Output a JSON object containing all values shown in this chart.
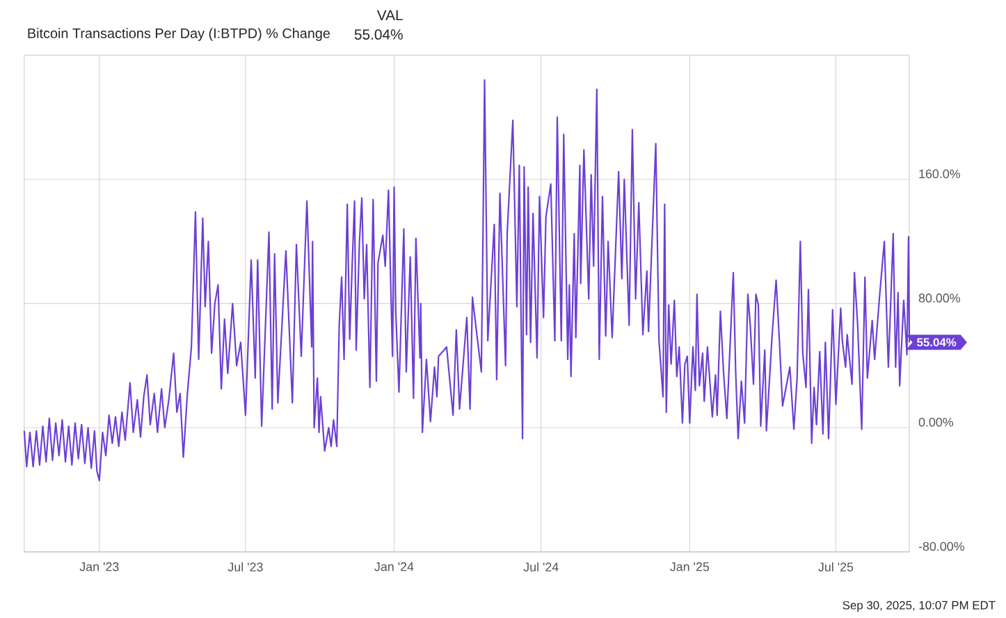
{
  "chart_data": {
    "type": "line",
    "title": "Bitcoin Transactions Per Day (I:BTPD) % Change",
    "annotations": [
      "VAL",
      "55.04%",
      {
        "text": "55.04%",
        "x": "2025-09-30",
        "y": 55.04
      },
      "Sep 30, 2025, 10:07 PM EDT"
    ],
    "xlim": [
      "2022-09-30",
      "2025-09-30"
    ],
    "xticks": [
      {
        "value": "2023-01-01",
        "label": "Jan '23"
      },
      {
        "value": "2023-07-01",
        "label": "Jul '23"
      },
      {
        "value": "2024-01-01",
        "label": "Jan '24"
      },
      {
        "value": "2024-07-01",
        "label": "Jul '24"
      },
      {
        "value": "2025-01-01",
        "label": "Jan '25"
      },
      {
        "value": "2025-07-01",
        "label": "Jul '25"
      }
    ],
    "ylim": [
      -80,
      240
    ],
    "yticks": [
      {
        "value": -80,
        "label": "-80.00%"
      },
      {
        "value": 0,
        "label": "0.00%"
      },
      {
        "value": 80,
        "label": "80.00%"
      },
      {
        "value": 160,
        "label": "160.0%"
      }
    ],
    "grid": true,
    "series": [
      {
        "color": "#6c3fd4",
        "x": [
          "2022-09-30",
          "2022-10-03",
          "2022-10-07",
          "2022-10-11",
          "2022-10-15",
          "2022-10-19",
          "2022-10-23",
          "2022-10-27",
          "2022-10-31",
          "2022-11-04",
          "2022-11-08",
          "2022-11-12",
          "2022-11-16",
          "2022-11-20",
          "2022-11-24",
          "2022-11-28",
          "2022-12-02",
          "2022-12-06",
          "2022-12-10",
          "2022-12-14",
          "2022-12-18",
          "2022-12-22",
          "2022-12-26",
          "2022-12-29",
          "2023-01-01",
          "2023-01-05",
          "2023-01-09",
          "2023-01-13",
          "2023-01-17",
          "2023-01-21",
          "2023-01-25",
          "2023-01-29",
          "2023-02-02",
          "2023-02-08",
          "2023-02-12",
          "2023-02-17",
          "2023-02-21",
          "2023-02-25",
          "2023-03-01",
          "2023-03-05",
          "2023-03-10",
          "2023-03-14",
          "2023-03-19",
          "2023-03-23",
          "2023-03-28",
          "2023-04-03",
          "2023-04-07",
          "2023-04-11",
          "2023-04-15",
          "2023-04-20",
          "2023-04-25",
          "2023-04-30",
          "2023-05-04",
          "2023-05-09",
          "2023-05-12",
          "2023-05-16",
          "2023-05-20",
          "2023-05-24",
          "2023-05-28",
          "2023-06-01",
          "2023-06-05",
          "2023-06-09",
          "2023-06-15",
          "2023-06-20",
          "2023-06-25",
          "2023-07-01",
          "2023-07-08",
          "2023-07-13",
          "2023-07-16",
          "2023-07-21",
          "2023-07-30",
          "2023-08-03",
          "2023-08-06",
          "2023-08-10",
          "2023-08-20",
          "2023-08-28",
          "2023-09-02",
          "2023-09-08",
          "2023-09-15",
          "2023-09-21",
          "2023-09-22",
          "2023-09-24",
          "2023-09-28",
          "2023-09-30",
          "2023-10-02",
          "2023-10-07",
          "2023-10-12",
          "2023-10-15",
          "2023-10-18",
          "2023-10-22",
          "2023-10-25",
          "2023-10-28",
          "2023-10-31",
          "2023-11-04",
          "2023-11-07",
          "2023-11-10",
          "2023-11-13",
          "2023-11-15",
          "2023-11-19",
          "2023-11-22",
          "2023-11-25",
          "2023-11-28",
          "2023-12-02",
          "2023-12-06",
          "2023-12-10",
          "2023-12-12",
          "2023-12-18",
          "2023-12-21",
          "2023-12-25",
          "2023-12-28",
          "2023-12-30",
          "2024-01-01",
          "2024-01-03",
          "2024-01-07",
          "2024-01-13",
          "2024-01-16",
          "2024-01-21",
          "2024-01-25",
          "2024-01-28",
          "2024-02-02",
          "2024-02-03",
          "2024-02-05",
          "2024-02-10",
          "2024-02-15",
          "2024-02-20",
          "2024-02-23",
          "2024-02-25",
          "2024-03-06",
          "2024-03-14",
          "2024-03-18",
          "2024-03-22",
          "2024-03-31",
          "2024-04-04",
          "2024-04-07",
          "2024-04-18",
          "2024-04-20",
          "2024-04-22",
          "2024-04-26",
          "2024-05-04",
          "2024-05-07",
          "2024-05-11",
          "2024-05-18",
          "2024-05-20",
          "2024-05-27",
          "2024-06-01",
          "2024-06-04",
          "2024-06-08",
          "2024-06-10",
          "2024-06-13",
          "2024-06-15",
          "2024-06-18",
          "2024-06-21",
          "2024-06-26",
          "2024-06-29",
          "2024-07-04",
          "2024-07-07",
          "2024-07-13",
          "2024-07-18",
          "2024-07-21",
          "2024-07-26",
          "2024-07-29",
          "2024-08-03",
          "2024-08-05",
          "2024-08-07",
          "2024-08-11",
          "2024-08-13",
          "2024-08-18",
          "2024-08-19",
          "2024-08-23",
          "2024-08-29",
          "2024-09-01",
          "2024-09-04",
          "2024-09-08",
          "2024-09-11",
          "2024-09-15",
          "2024-09-19",
          "2024-09-22",
          "2024-09-27",
          "2024-10-05",
          "2024-10-09",
          "2024-10-12",
          "2024-10-18",
          "2024-10-22",
          "2024-10-26",
          "2024-10-30",
          "2024-11-04",
          "2024-11-09",
          "2024-11-11",
          "2024-11-20",
          "2024-11-24",
          "2024-11-29",
          "2024-12-01",
          "2024-12-03",
          "2024-12-06",
          "2024-12-09",
          "2024-12-13",
          "2024-12-16",
          "2024-12-19",
          "2024-12-23",
          "2024-12-26",
          "2024-12-29",
          "2025-01-01",
          "2025-01-05",
          "2025-01-08",
          "2025-01-10",
          "2025-01-13",
          "2025-01-17",
          "2025-01-19",
          "2025-01-23",
          "2025-01-29",
          "2025-02-02",
          "2025-02-04",
          "2025-02-08",
          "2025-02-12",
          "2025-02-16",
          "2025-02-24",
          "2025-02-27",
          "2025-03-02",
          "2025-03-06",
          "2025-03-10",
          "2025-03-14",
          "2025-03-17",
          "2025-03-21",
          "2025-03-24",
          "2025-03-27",
          "2025-03-30",
          "2025-04-04",
          "2025-04-06",
          "2025-04-13",
          "2025-04-18",
          "2025-04-22",
          "2025-04-26",
          "2025-05-05",
          "2025-05-10",
          "2025-05-14",
          "2025-05-18",
          "2025-05-21",
          "2025-05-25",
          "2025-05-28",
          "2025-06-01",
          "2025-06-04",
          "2025-06-07",
          "2025-06-11",
          "2025-06-15",
          "2025-06-18",
          "2025-06-22",
          "2025-06-27",
          "2025-07-01",
          "2025-07-07",
          "2025-07-09",
          "2025-07-13",
          "2025-07-15",
          "2025-07-21",
          "2025-07-24",
          "2025-07-28",
          "2025-08-02",
          "2025-08-06",
          "2025-08-09",
          "2025-08-15",
          "2025-08-18",
          "2025-08-24",
          "2025-08-30",
          "2025-09-04",
          "2025-09-10",
          "2025-09-13",
          "2025-09-16",
          "2025-09-18",
          "2025-09-23",
          "2025-09-27",
          "2025-09-29",
          "2025-09-30"
        ],
        "values": [
          -2,
          -25,
          -3,
          -25,
          -2,
          -24,
          1,
          -22,
          6,
          -21,
          3,
          -18,
          5,
          -22,
          1,
          -24,
          3,
          -20,
          2,
          -23,
          0,
          -26,
          -2,
          -28,
          -34,
          -3,
          -18,
          8,
          -10,
          7,
          -12,
          10,
          -8,
          29,
          -3,
          18,
          -6,
          20,
          34,
          2,
          22,
          -3,
          25,
          0,
          18,
          48,
          10,
          22,
          -19,
          22,
          52,
          139,
          44,
          135,
          78,
          120,
          48,
          80,
          92,
          25,
          70,
          35,
          80,
          40,
          55,
          8,
          108,
          32,
          108,
          1,
          126,
          12,
          112,
          16,
          114,
          16,
          118,
          46,
          146,
          52,
          120,
          0,
          32,
          -3,
          20,
          -15,
          0,
          -12,
          5,
          -12,
          66,
          97,
          44,
          144,
          57,
          104,
          146,
          50,
          119,
          148,
          83,
          118,
          26,
          147,
          30,
          106,
          124,
          104,
          153,
          88,
          46,
          155,
          75,
          23,
          128,
          36,
          110,
          19,
          122,
          45,
          80,
          -3,
          44,
          4,
          39,
          20,
          46,
          52,
          8,
          63,
          12,
          71,
          12,
          84,
          36,
          122,
          224,
          56,
          131,
          31,
          151,
          40,
          125,
          198,
          78,
          169,
          -7,
          168,
          60,
          155,
          55,
          138,
          45,
          149,
          71,
          136,
          157,
          56,
          200,
          56,
          189,
          44,
          92,
          33,
          125,
          58,
          169,
          93,
          179,
          83,
          163,
          104,
          218,
          44,
          149,
          59,
          120,
          58,
          165,
          96,
          160,
          66,
          192,
          83,
          145,
          60,
          101,
          62,
          183,
          56,
          20,
          144,
          10,
          79,
          41,
          82,
          33,
          52,
          3,
          41,
          46,
          3,
          52,
          24,
          86,
          27,
          48,
          17,
          52,
          7,
          34,
          8,
          75,
          35,
          6,
          100,
          35,
          -7,
          30,
          3,
          86,
          66,
          28,
          86,
          79,
          1,
          50,
          -2,
          59,
          95,
          57,
          14,
          39,
          -1,
          32,
          120,
          48,
          26,
          89,
          -10,
          26,
          2,
          49,
          -4,
          55,
          -7,
          76,
          15,
          77,
          56,
          39,
          60,
          28,
          100,
          66,
          -1,
          97,
          32,
          69,
          44,
          84,
          120,
          39,
          125,
          39,
          87,
          27,
          82,
          47,
          123,
          55.04
        ]
      }
    ]
  }
}
